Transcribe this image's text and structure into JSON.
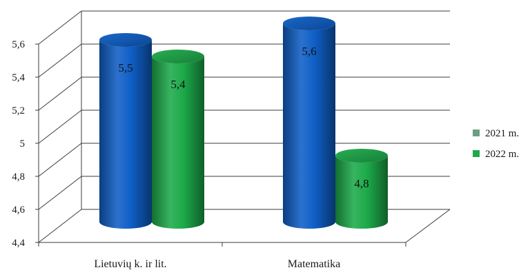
{
  "chart_data": {
    "type": "bar",
    "style": "3d-cylinder",
    "categories": [
      "Lietuvių k. ir lit.",
      "Matematika"
    ],
    "series": [
      {
        "name": "2021 m.",
        "values": [
          5.5,
          5.6
        ],
        "color": "#0f5fc6",
        "legend_color": "#6d9e84"
      },
      {
        "name": "2022 m.",
        "values": [
          5.4,
          4.8
        ],
        "color": "#1daa4a",
        "legend_color": "#1ea84c"
      }
    ],
    "data_labels": [
      [
        "5,5",
        "5,6"
      ],
      [
        "5,4",
        "4,8"
      ]
    ],
    "ylim": [
      4.4,
      5.6
    ],
    "yticks": [
      4.4,
      4.6,
      4.8,
      5,
      5.2,
      5.4,
      5.6
    ],
    "ytick_labels": [
      "4,4",
      "4,6",
      "4,8",
      "5",
      "5,2",
      "5,4",
      "5,6"
    ],
    "grid": true,
    "legend_position": "right",
    "title": "",
    "xlabel": "",
    "ylabel": ""
  }
}
